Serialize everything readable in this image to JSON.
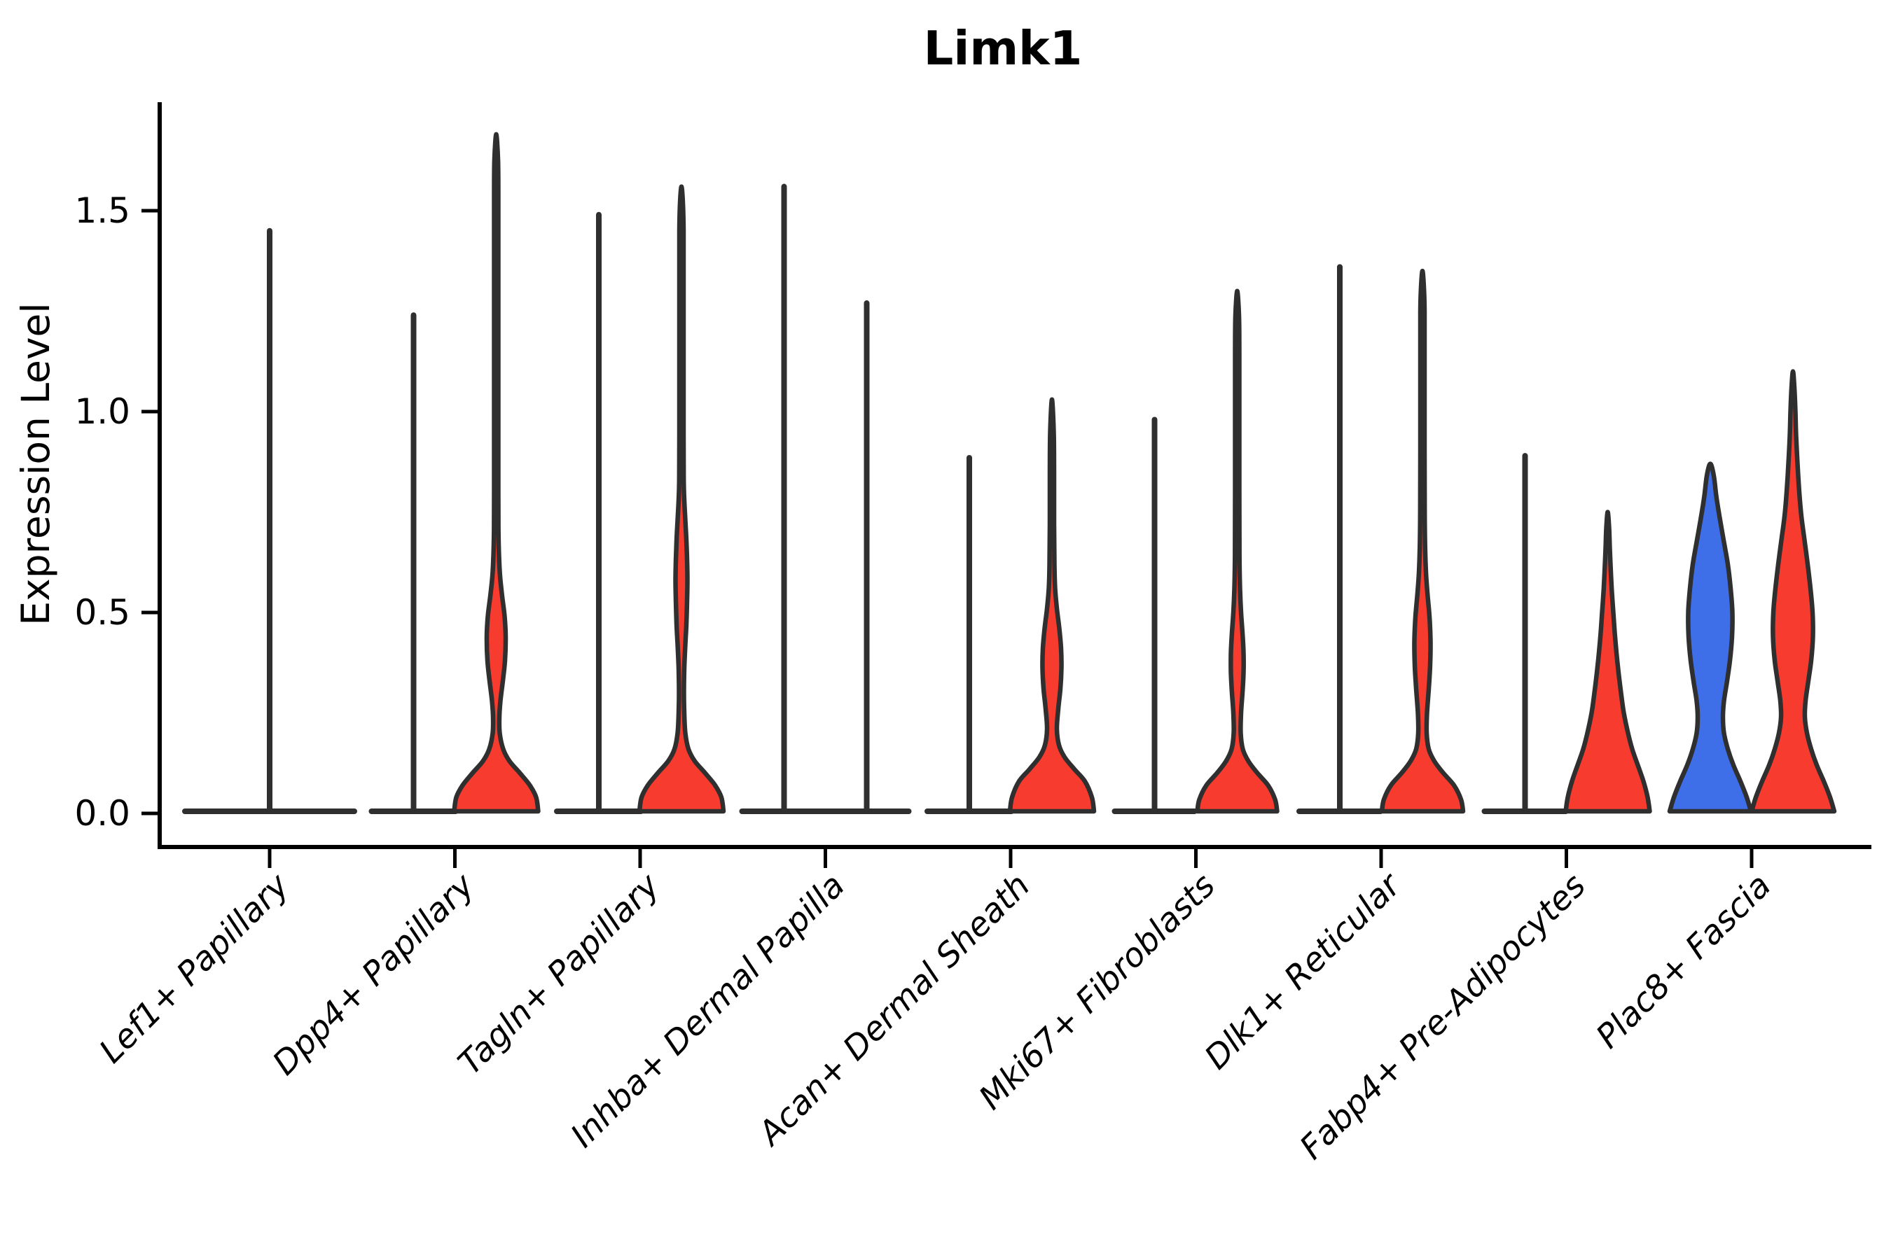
{
  "title": "Limk1",
  "axes": {
    "ylabel": "Expression Level",
    "ytick_labels": [
      "0.0",
      "0.5",
      "1.0",
      "1.5"
    ]
  },
  "chart_data": {
    "type": "violin",
    "title": "Limk1",
    "xlabel": "",
    "ylabel": "Expression Level",
    "ylim": [
      -0.08,
      1.78
    ],
    "yticks": [
      0.0,
      0.5,
      1.0,
      1.5
    ],
    "ytick_labels": [
      "0.0",
      "0.5",
      "1.0",
      "1.5"
    ],
    "grid": false,
    "legend": "none",
    "categories": [
      "Lef1+ Papillary",
      "Dpp4+ Papillary",
      "Tagln+ Papillary",
      "Inhba+ Dermal Papilla",
      "Acan+ Dermal Sheath",
      "Mki67+ Fibroblasts",
      "Dlk1+ Reticular",
      "Fabp4+ Pre-Adipocytes",
      "Plac8+ Fascia"
    ],
    "colors": {
      "red": "#f83b2f",
      "blue": "#3f6fe8",
      "edge": "#2f2f2f",
      "axis": "#000000"
    },
    "violins": [
      {
        "category": 0,
        "side": "center",
        "kind": "line",
        "max": 1.45,
        "base_halfwidth": 121
      },
      {
        "category": 1,
        "side": "left",
        "kind": "line",
        "max": 1.24,
        "base_halfwidth": 60
      },
      {
        "category": 1,
        "side": "right",
        "kind": "shape",
        "color": "red",
        "max": 1.69,
        "base_halfwidth": 60,
        "profile": [
          [
            0,
            60
          ],
          [
            0.04,
            57
          ],
          [
            0.07,
            48
          ],
          [
            0.1,
            34
          ],
          [
            0.13,
            19
          ],
          [
            0.16,
            10
          ],
          [
            0.2,
            5
          ],
          [
            0.24,
            4.5
          ],
          [
            0.28,
            6
          ],
          [
            0.33,
            9.5
          ],
          [
            0.38,
            12.5
          ],
          [
            0.44,
            13.5
          ],
          [
            0.49,
            12
          ],
          [
            0.54,
            8.5
          ],
          [
            0.59,
            5.5
          ],
          [
            0.64,
            4
          ],
          [
            0.7,
            3.2
          ],
          [
            0.8,
            3
          ],
          [
            1.0,
            3
          ],
          [
            1.2,
            3
          ],
          [
            1.4,
            3
          ],
          [
            1.55,
            3
          ],
          [
            1.63,
            2.5
          ],
          [
            1.69,
            0
          ]
        ]
      },
      {
        "category": 2,
        "side": "left",
        "kind": "line",
        "max": 1.49,
        "base_halfwidth": 60
      },
      {
        "category": 2,
        "side": "right",
        "kind": "shape",
        "color": "red",
        "max": 1.56,
        "base_halfwidth": 60,
        "profile": [
          [
            0,
            60
          ],
          [
            0.04,
            57
          ],
          [
            0.07,
            48
          ],
          [
            0.1,
            34
          ],
          [
            0.13,
            19
          ],
          [
            0.16,
            10
          ],
          [
            0.2,
            5.5
          ],
          [
            0.25,
            4
          ],
          [
            0.3,
            3.5
          ],
          [
            0.36,
            4
          ],
          [
            0.42,
            5.5
          ],
          [
            0.47,
            7
          ],
          [
            0.53,
            8
          ],
          [
            0.58,
            8.5
          ],
          [
            0.63,
            8
          ],
          [
            0.68,
            7
          ],
          [
            0.73,
            5.5
          ],
          [
            0.78,
            4
          ],
          [
            0.83,
            3.2
          ],
          [
            0.95,
            3
          ],
          [
            1.1,
            3
          ],
          [
            1.3,
            3
          ],
          [
            1.45,
            3
          ],
          [
            1.52,
            2
          ],
          [
            1.56,
            0
          ]
        ]
      },
      {
        "category": 3,
        "side": "left",
        "kind": "line",
        "max": 1.56,
        "base_halfwidth": 60
      },
      {
        "category": 3,
        "side": "right",
        "kind": "line",
        "max": 1.27,
        "base_halfwidth": 60
      },
      {
        "category": 4,
        "side": "left",
        "kind": "line",
        "max": 0.885,
        "base_halfwidth": 60
      },
      {
        "category": 4,
        "side": "right",
        "kind": "shape",
        "color": "red",
        "max": 1.03,
        "base_halfwidth": 60,
        "profile": [
          [
            0,
            60
          ],
          [
            0.04,
            57
          ],
          [
            0.08,
            47
          ],
          [
            0.11,
            32
          ],
          [
            0.14,
            18
          ],
          [
            0.17,
            10
          ],
          [
            0.21,
            7
          ],
          [
            0.26,
            9
          ],
          [
            0.31,
            12
          ],
          [
            0.36,
            13.5
          ],
          [
            0.41,
            13
          ],
          [
            0.46,
            10.5
          ],
          [
            0.51,
            7
          ],
          [
            0.56,
            4.5
          ],
          [
            0.62,
            3.5
          ],
          [
            0.72,
            3
          ],
          [
            0.85,
            3
          ],
          [
            0.95,
            2.5
          ],
          [
            1.03,
            0
          ]
        ]
      },
      {
        "category": 5,
        "side": "left",
        "kind": "line",
        "max": 0.98,
        "base_halfwidth": 57
      },
      {
        "category": 5,
        "side": "right",
        "kind": "shape",
        "color": "red",
        "max": 1.3,
        "base_halfwidth": 57,
        "profile": [
          [
            0,
            57
          ],
          [
            0.035,
            54
          ],
          [
            0.07,
            44
          ],
          [
            0.1,
            29
          ],
          [
            0.13,
            16
          ],
          [
            0.16,
            8
          ],
          [
            0.2,
            5
          ],
          [
            0.25,
            5.5
          ],
          [
            0.3,
            7.5
          ],
          [
            0.35,
            9
          ],
          [
            0.4,
            9
          ],
          [
            0.45,
            7.5
          ],
          [
            0.5,
            5.5
          ],
          [
            0.56,
            4
          ],
          [
            0.64,
            3.2
          ],
          [
            0.8,
            3
          ],
          [
            1.0,
            3
          ],
          [
            1.15,
            3
          ],
          [
            1.24,
            2.5
          ],
          [
            1.3,
            0
          ]
        ]
      },
      {
        "category": 6,
        "side": "left",
        "kind": "line",
        "max": 1.36,
        "base_halfwidth": 58
      },
      {
        "category": 6,
        "side": "right",
        "kind": "shape",
        "color": "red",
        "max": 1.35,
        "base_halfwidth": 58,
        "profile": [
          [
            0,
            58
          ],
          [
            0.035,
            55
          ],
          [
            0.07,
            45
          ],
          [
            0.1,
            30
          ],
          [
            0.13,
            17
          ],
          [
            0.16,
            9
          ],
          [
            0.2,
            6
          ],
          [
            0.25,
            6.5
          ],
          [
            0.31,
            9
          ],
          [
            0.37,
            11
          ],
          [
            0.43,
            11.5
          ],
          [
            0.49,
            10
          ],
          [
            0.55,
            7
          ],
          [
            0.6,
            5
          ],
          [
            0.66,
            3.8
          ],
          [
            0.75,
            3.2
          ],
          [
            0.9,
            3
          ],
          [
            1.1,
            3
          ],
          [
            1.25,
            3
          ],
          [
            1.31,
            2
          ],
          [
            1.35,
            0
          ]
        ]
      },
      {
        "category": 7,
        "side": "left",
        "kind": "line",
        "max": 0.89,
        "base_halfwidth": 58
      },
      {
        "category": 7,
        "side": "right",
        "kind": "shape",
        "color": "red",
        "max": 0.75,
        "base_halfwidth": 60,
        "profile": [
          [
            0,
            60
          ],
          [
            0.04,
            57
          ],
          [
            0.08,
            51
          ],
          [
            0.12,
            43
          ],
          [
            0.16,
            35
          ],
          [
            0.2,
            29
          ],
          [
            0.25,
            23
          ],
          [
            0.3,
            19
          ],
          [
            0.35,
            15.5
          ],
          [
            0.4,
            12.5
          ],
          [
            0.45,
            10
          ],
          [
            0.5,
            8
          ],
          [
            0.55,
            6
          ],
          [
            0.6,
            4.5
          ],
          [
            0.66,
            3
          ],
          [
            0.71,
            2
          ],
          [
            0.75,
            0
          ]
        ]
      },
      {
        "category": 8,
        "side": "left",
        "kind": "shape",
        "color": "blue",
        "max": 0.87,
        "base_halfwidth": 58,
        "profile": [
          [
            0,
            58
          ],
          [
            0.04,
            52
          ],
          [
            0.08,
            43
          ],
          [
            0.12,
            33
          ],
          [
            0.16,
            25
          ],
          [
            0.2,
            19.5
          ],
          [
            0.24,
            18
          ],
          [
            0.28,
            19.5
          ],
          [
            0.33,
            24
          ],
          [
            0.38,
            28
          ],
          [
            0.44,
            31
          ],
          [
            0.5,
            31.5
          ],
          [
            0.56,
            29
          ],
          [
            0.62,
            25
          ],
          [
            0.68,
            19
          ],
          [
            0.74,
            13
          ],
          [
            0.79,
            8.5
          ],
          [
            0.84,
            5
          ],
          [
            0.87,
            0
          ]
        ]
      },
      {
        "category": 8,
        "side": "right",
        "kind": "shape",
        "color": "red",
        "max": 1.1,
        "base_halfwidth": 59,
        "profile": [
          [
            0,
            59
          ],
          [
            0.04,
            53
          ],
          [
            0.08,
            44
          ],
          [
            0.12,
            34
          ],
          [
            0.16,
            26
          ],
          [
            0.2,
            20
          ],
          [
            0.24,
            17
          ],
          [
            0.28,
            18
          ],
          [
            0.33,
            22
          ],
          [
            0.38,
            26
          ],
          [
            0.44,
            28.5
          ],
          [
            0.5,
            28
          ],
          [
            0.56,
            25
          ],
          [
            0.62,
            21
          ],
          [
            0.68,
            16.5
          ],
          [
            0.74,
            12
          ],
          [
            0.8,
            9
          ],
          [
            0.87,
            6.5
          ],
          [
            0.94,
            4.5
          ],
          [
            1.0,
            3.5
          ],
          [
            1.06,
            2
          ],
          [
            1.1,
            0
          ]
        ]
      }
    ]
  }
}
